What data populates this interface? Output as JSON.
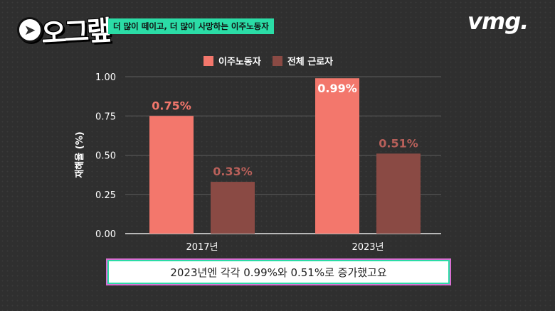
{
  "header": {
    "logo_text": "오그랲",
    "logo_icon": "arrow-badge-icon",
    "tag": "더 많이 떼이고, 더 많이 사망하는 이주노동자",
    "brand": "vmg."
  },
  "colors": {
    "background": "#2f2f2f",
    "accent": "#2bdca6",
    "series_migrant": "#f3776c",
    "series_all": "#8a4a44"
  },
  "chart_data": {
    "type": "bar",
    "title": "",
    "xlabel": "",
    "ylabel": "재해율 (%)",
    "categories": [
      "2017년",
      "2023년"
    ],
    "series": [
      {
        "name": "이주노동자",
        "values": [
          0.75,
          0.99
        ],
        "labels": [
          "0.75%",
          "0.99%"
        ]
      },
      {
        "name": "전체 근로자",
        "values": [
          0.33,
          0.51
        ],
        "labels": [
          "0.33%",
          "0.51%"
        ]
      }
    ],
    "ylim": [
      0,
      1.0
    ],
    "yticks": [
      "0.00",
      "0.25",
      "0.50",
      "0.75",
      "1.00"
    ],
    "grid": true,
    "legend": "top-center"
  },
  "caption": "2023년엔 각각 0.99%와 0.51%로 증가했고요"
}
